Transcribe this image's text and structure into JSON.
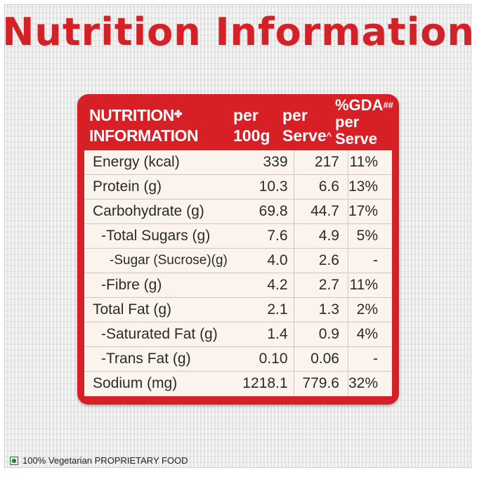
{
  "title": "Nutrition Information",
  "table": {
    "header": {
      "col1_line1": "NUTRITION",
      "col1_mark": "✤",
      "col1_line2": "INFORMATION",
      "col2_line1": "per",
      "col2_line2": "100g",
      "col3_line1": "per",
      "col3_line2": "Serve",
      "col3_mark": "^",
      "col4_line1": "%GDA",
      "col4_mark": "##",
      "col4_line2": "per",
      "col4_line3": "Serve"
    },
    "rows": [
      {
        "label": "Energy (kcal)",
        "per100g": "339",
        "perServe": "217",
        "gda": "11%"
      },
      {
        "label": "Protein (g)",
        "per100g": "10.3",
        "perServe": "6.6",
        "gda": "13%"
      },
      {
        "label": "Carbohydrate (g)",
        "per100g": "69.8",
        "perServe": "44.7",
        "gda": "17%"
      },
      {
        "label": "-Total Sugars (g)",
        "per100g": "7.6",
        "perServe": "4.9",
        "gda": "5%"
      },
      {
        "label": "-Sugar (Sucrose)(g)",
        "per100g": "4.0",
        "perServe": "2.6",
        "gda": "-"
      },
      {
        "label": "-Fibre (g)",
        "per100g": "4.2",
        "perServe": "2.7",
        "gda": "11%"
      },
      {
        "label": "Total Fat (g)",
        "per100g": "2.1",
        "perServe": "1.3",
        "gda": "2%"
      },
      {
        "label": "-Saturated Fat (g)",
        "per100g": "1.4",
        "perServe": "0.9",
        "gda": "4%"
      },
      {
        "label": "-Trans Fat (g)",
        "per100g": "0.10",
        "perServe": "0.06",
        "gda": "-"
      },
      {
        "label": "Sodium (mg)",
        "per100g": "1218.1",
        "perServe": "779.6",
        "gda": "32%"
      }
    ]
  },
  "footer": {
    "icon": "veg-icon",
    "text": "100% Vegetarian PROPRIETARY FOOD"
  },
  "colors": {
    "accent": "#d42027",
    "panel_bg": "#fbf4ec",
    "veg_green": "#1e7b34"
  }
}
